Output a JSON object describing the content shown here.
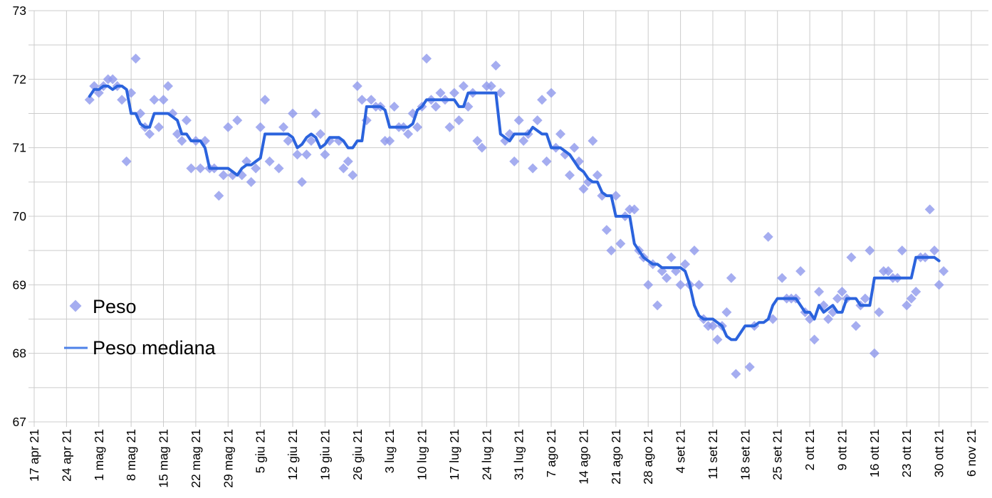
{
  "chart_data": {
    "type": "scatter",
    "title": "",
    "xlabel": "",
    "ylabel": "",
    "grid": true,
    "legend_position": "inside-left",
    "x_axis": {
      "kind": "date-weekly-ticks",
      "x_is_days_since_first_tick": true,
      "tick_step_days": 7,
      "tick_labels": [
        "17 apr 21",
        "24 apr 21",
        "1 mag 21",
        "8 mag 21",
        "15 mag 21",
        "22 mag 21",
        "29 mag 21",
        "5 giu 21",
        "12 giu 21",
        "19 giu 21",
        "26 giu 21",
        "3 lug 21",
        "10 lug 21",
        "17 lug 21",
        "24 lug 21",
        "31 lug 21",
        "7 ago 21",
        "14 ago 21",
        "21 ago 21",
        "28 ago 21",
        "4 set 21",
        "11 set 21",
        "18 set 21",
        "25 set 21",
        "2 ott 21",
        "9 ott 21",
        "16 ott 21",
        "23 ott 21",
        "30 ott 21",
        "6 nov 21"
      ]
    },
    "y_axis": {
      "min": 67,
      "max": 73,
      "label_step": 1,
      "grid_step": 0.5,
      "tick_labels": [
        "67",
        "68",
        "69",
        "70",
        "71",
        "72",
        "73"
      ]
    },
    "colors": {
      "scatter_fill": "#8f99ec",
      "scatter_opacity": 0.8,
      "line_stroke": "#2b63dd",
      "legend_line_stroke": "#4d81e8",
      "grid": "#cccccc",
      "background": "#ffffff",
      "text": "#000000"
    },
    "series": [
      {
        "name": "Peso",
        "type": "scatter",
        "marker": "diamond",
        "points": [
          [
            12,
            71.7
          ],
          [
            13,
            71.9
          ],
          [
            14,
            71.8
          ],
          [
            15,
            71.9
          ],
          [
            16,
            72.0
          ],
          [
            17,
            72.0
          ],
          [
            18,
            71.9
          ],
          [
            19,
            71.7
          ],
          [
            20,
            70.8
          ],
          [
            21,
            71.8
          ],
          [
            22,
            72.3
          ],
          [
            23,
            71.5
          ],
          [
            24,
            71.3
          ],
          [
            25,
            71.2
          ],
          [
            26,
            71.7
          ],
          [
            27,
            71.3
          ],
          [
            28,
            71.7
          ],
          [
            29,
            71.9
          ],
          [
            30,
            71.5
          ],
          [
            31,
            71.2
          ],
          [
            32,
            71.1
          ],
          [
            33,
            71.4
          ],
          [
            34,
            70.7
          ],
          [
            35,
            71.1
          ],
          [
            36,
            70.7
          ],
          [
            37,
            71.1
          ],
          [
            38,
            70.7
          ],
          [
            39,
            70.7
          ],
          [
            40,
            70.3
          ],
          [
            41,
            70.6
          ],
          [
            42,
            71.3
          ],
          [
            43,
            70.6
          ],
          [
            44,
            71.4
          ],
          [
            45,
            70.6
          ],
          [
            46,
            70.8
          ],
          [
            47,
            70.5
          ],
          [
            48,
            70.7
          ],
          [
            49,
            71.3
          ],
          [
            50,
            71.7
          ],
          [
            51,
            70.8
          ],
          [
            53,
            70.7
          ],
          [
            54,
            71.3
          ],
          [
            55,
            71.1
          ],
          [
            56,
            71.5
          ],
          [
            57,
            70.9
          ],
          [
            58,
            70.5
          ],
          [
            59,
            70.9
          ],
          [
            60,
            71.1
          ],
          [
            61,
            71.5
          ],
          [
            62,
            71.2
          ],
          [
            63,
            70.9
          ],
          [
            64,
            71.1
          ],
          [
            66,
            71.1
          ],
          [
            67,
            70.7
          ],
          [
            68,
            70.8
          ],
          [
            69,
            70.6
          ],
          [
            70,
            71.9
          ],
          [
            71,
            71.7
          ],
          [
            72,
            71.4
          ],
          [
            73,
            71.7
          ],
          [
            74,
            71.6
          ],
          [
            75,
            71.6
          ],
          [
            76,
            71.1
          ],
          [
            77,
            71.1
          ],
          [
            78,
            71.6
          ],
          [
            79,
            71.3
          ],
          [
            80,
            71.3
          ],
          [
            81,
            71.2
          ],
          [
            82,
            71.5
          ],
          [
            83,
            71.3
          ],
          [
            84,
            71.6
          ],
          [
            85,
            72.3
          ],
          [
            86,
            71.7
          ],
          [
            87,
            71.6
          ],
          [
            88,
            71.8
          ],
          [
            89,
            71.7
          ],
          [
            90,
            71.3
          ],
          [
            91,
            71.8
          ],
          [
            92,
            71.4
          ],
          [
            93,
            71.9
          ],
          [
            94,
            71.6
          ],
          [
            95,
            71.8
          ],
          [
            96,
            71.1
          ],
          [
            97,
            71.0
          ],
          [
            98,
            71.9
          ],
          [
            99,
            71.9
          ],
          [
            100,
            72.2
          ],
          [
            101,
            71.8
          ],
          [
            102,
            71.1
          ],
          [
            103,
            71.2
          ],
          [
            104,
            70.8
          ],
          [
            105,
            71.4
          ],
          [
            106,
            71.1
          ],
          [
            107,
            71.2
          ],
          [
            108,
            70.7
          ],
          [
            109,
            71.4
          ],
          [
            110,
            71.7
          ],
          [
            111,
            70.8
          ],
          [
            112,
            71.8
          ],
          [
            113,
            71.0
          ],
          [
            114,
            71.2
          ],
          [
            115,
            70.9
          ],
          [
            116,
            70.6
          ],
          [
            117,
            71.0
          ],
          [
            118,
            70.8
          ],
          [
            119,
            70.4
          ],
          [
            120,
            70.5
          ],
          [
            121,
            71.1
          ],
          [
            122,
            70.6
          ],
          [
            123,
            70.3
          ],
          [
            124,
            69.8
          ],
          [
            125,
            69.5
          ],
          [
            126,
            70.3
          ],
          [
            127,
            69.6
          ],
          [
            128,
            70.0
          ],
          [
            129,
            70.1
          ],
          [
            130,
            70.1
          ],
          [
            131,
            69.5
          ],
          [
            132,
            69.4
          ],
          [
            133,
            69.0
          ],
          [
            134,
            69.3
          ],
          [
            135,
            68.7
          ],
          [
            136,
            69.2
          ],
          [
            137,
            69.1
          ],
          [
            138,
            69.4
          ],
          [
            139,
            69.2
          ],
          [
            140,
            69.0
          ],
          [
            141,
            69.3
          ],
          [
            142,
            69.0
          ],
          [
            143,
            69.5
          ],
          [
            144,
            69.0
          ],
          [
            145,
            68.5
          ],
          [
            146,
            68.4
          ],
          [
            147,
            68.4
          ],
          [
            148,
            68.2
          ],
          [
            149,
            68.4
          ],
          [
            150,
            68.6
          ],
          [
            151,
            69.1
          ],
          [
            152,
            67.7
          ],
          [
            155,
            67.8
          ],
          [
            156,
            68.4
          ],
          [
            159,
            69.7
          ],
          [
            160,
            68.5
          ],
          [
            162,
            69.1
          ],
          [
            163,
            68.8
          ],
          [
            164,
            68.8
          ],
          [
            165,
            68.8
          ],
          [
            166,
            69.2
          ],
          [
            167,
            68.6
          ],
          [
            168,
            68.5
          ],
          [
            169,
            68.2
          ],
          [
            170,
            68.9
          ],
          [
            171,
            68.7
          ],
          [
            172,
            68.5
          ],
          [
            173,
            68.6
          ],
          [
            174,
            68.8
          ],
          [
            175,
            68.9
          ],
          [
            176,
            68.8
          ],
          [
            177,
            69.4
          ],
          [
            178,
            68.4
          ],
          [
            179,
            68.7
          ],
          [
            180,
            68.8
          ],
          [
            181,
            69.5
          ],
          [
            182,
            68.0
          ],
          [
            183,
            68.6
          ],
          [
            184,
            69.2
          ],
          [
            185,
            69.2
          ],
          [
            186,
            69.1
          ],
          [
            187,
            69.1
          ],
          [
            188,
            69.5
          ],
          [
            189,
            68.7
          ],
          [
            190,
            68.8
          ],
          [
            191,
            68.9
          ],
          [
            192,
            69.4
          ],
          [
            193,
            69.4
          ],
          [
            194,
            70.1
          ],
          [
            195,
            69.5
          ],
          [
            196,
            69.0
          ],
          [
            197,
            69.2
          ]
        ]
      },
      {
        "name": "Peso mediana",
        "type": "line",
        "start_day": 12,
        "values": [
          71.75,
          71.85,
          71.85,
          71.9,
          71.9,
          71.85,
          71.9,
          71.9,
          71.85,
          71.5,
          71.5,
          71.35,
          71.3,
          71.3,
          71.5,
          71.5,
          71.5,
          71.5,
          71.45,
          71.4,
          71.2,
          71.2,
          71.1,
          71.1,
          71.1,
          71.0,
          70.7,
          70.7,
          70.7,
          70.7,
          70.7,
          70.65,
          70.6,
          70.7,
          70.75,
          70.75,
          70.8,
          70.85,
          71.2,
          71.2,
          71.2,
          71.2,
          71.2,
          71.2,
          71.15,
          71.0,
          71.05,
          71.15,
          71.2,
          71.15,
          71.0,
          71.05,
          71.15,
          71.15,
          71.15,
          71.1,
          71.0,
          71.0,
          71.1,
          71.1,
          71.6,
          71.6,
          71.6,
          71.6,
          71.55,
          71.3,
          71.3,
          71.3,
          71.3,
          71.3,
          71.35,
          71.55,
          71.6,
          71.7,
          71.7,
          71.7,
          71.7,
          71.7,
          71.7,
          71.7,
          71.6,
          71.6,
          71.8,
          71.8,
          71.8,
          71.8,
          71.8,
          71.8,
          71.8,
          71.2,
          71.15,
          71.1,
          71.2,
          71.2,
          71.2,
          71.2,
          71.3,
          71.25,
          71.2,
          71.2,
          71.0,
          71.0,
          71.0,
          70.95,
          70.9,
          70.8,
          70.7,
          70.65,
          70.55,
          70.5,
          70.5,
          70.35,
          70.3,
          70.3,
          70.0,
          70.0,
          70.0,
          70.0,
          69.6,
          69.5,
          69.4,
          69.35,
          69.3,
          69.3,
          69.25,
          69.25,
          69.25,
          69.25,
          69.25,
          69.2,
          69.0,
          68.7,
          68.55,
          68.5,
          68.5,
          68.5,
          68.45,
          68.4,
          68.25,
          68.2,
          68.2,
          68.3,
          68.4,
          68.4,
          68.4,
          68.45,
          68.45,
          68.5,
          68.7,
          68.8,
          68.8,
          68.8,
          68.8,
          68.8,
          68.7,
          68.6,
          68.6,
          68.5,
          68.7,
          68.6,
          68.65,
          68.7,
          68.6,
          68.6,
          68.8,
          68.8,
          68.8,
          68.7,
          68.7,
          68.7,
          69.1,
          69.1,
          69.1,
          69.1,
          69.1,
          69.1,
          69.1,
          69.1,
          69.1,
          69.4,
          69.4,
          69.4,
          69.4,
          69.4,
          69.35
        ]
      }
    ],
    "legend": {
      "entries": [
        {
          "label": "Peso",
          "marker": "diamond"
        },
        {
          "label": "Peso mediana",
          "marker": "line"
        }
      ]
    }
  }
}
